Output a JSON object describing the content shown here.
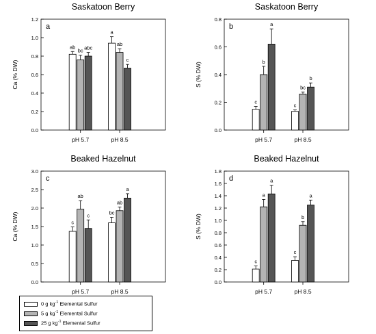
{
  "colors": {
    "treatment_0": "#ffffff",
    "treatment_5": "#b4b4b4",
    "treatment_25": "#555555"
  },
  "legend": {
    "entries": [
      {
        "pre": "0 g kg",
        "sup": "-1",
        "post": " Elemental Sulfur"
      },
      {
        "pre": "5 g kg",
        "sup": "-1",
        "post": " Elemental Sulfur"
      },
      {
        "pre": "25 g kg",
        "sup": "-1",
        "post": " Elemental Sulfur"
      }
    ]
  },
  "chart_data": [
    {
      "type": "bar",
      "panel_letter": "a",
      "title": "Saskatoon Berry",
      "ylabel": "Ca (% DW)",
      "xlabel": "",
      "categories": [
        "pH 5.7",
        "pH 8.5"
      ],
      "ylim": [
        0,
        1.2
      ],
      "yticks": [
        "0.0",
        "0.2",
        "0.4",
        "0.6",
        "0.8",
        "1.0",
        "1.2"
      ],
      "series": [
        {
          "values": [
            0.82,
            0.94
          ],
          "errors": [
            0.03,
            0.07
          ],
          "letters": [
            "ab",
            "a"
          ]
        },
        {
          "values": [
            0.76,
            0.84
          ],
          "errors": [
            0.05,
            0.04
          ],
          "letters": [
            "bc",
            "ab"
          ]
        },
        {
          "values": [
            0.8,
            0.67
          ],
          "errors": [
            0.04,
            0.04
          ],
          "letters": [
            "abc",
            "c"
          ]
        }
      ]
    },
    {
      "type": "bar",
      "panel_letter": "b",
      "title": "Saskatoon Berry",
      "ylabel": "S (% DW)",
      "xlabel": "",
      "categories": [
        "pH 5.7",
        "pH 8.5"
      ],
      "ylim": [
        0,
        0.8
      ],
      "yticks": [
        "0.0",
        "0.2",
        "0.4",
        "0.6",
        "0.8"
      ],
      "series": [
        {
          "values": [
            0.15,
            0.135
          ],
          "errors": [
            0.02,
            0.01
          ],
          "letters": [
            "c",
            "c"
          ]
        },
        {
          "values": [
            0.4,
            0.26
          ],
          "errors": [
            0.06,
            0.015
          ],
          "letters": [
            "b",
            "bc"
          ]
        },
        {
          "values": [
            0.62,
            0.31
          ],
          "errors": [
            0.11,
            0.03
          ],
          "letters": [
            "a",
            "b"
          ]
        }
      ]
    },
    {
      "type": "bar",
      "panel_letter": "c",
      "title": "Beaked Hazelnut",
      "ylabel": "Ca (% DW)",
      "xlabel": "",
      "categories": [
        "pH 5.7",
        "pH 8.5"
      ],
      "ylim": [
        0,
        3.0
      ],
      "yticks": [
        "0.0",
        "0.5",
        "1.0",
        "1.5",
        "2.0",
        "2.5",
        "3.0"
      ],
      "series": [
        {
          "values": [
            1.37,
            1.6
          ],
          "errors": [
            0.12,
            0.15
          ],
          "letters": [
            "c",
            "bc"
          ]
        },
        {
          "values": [
            1.97,
            1.93
          ],
          "errors": [
            0.23,
            0.1
          ],
          "letters": [
            "ab",
            "ab"
          ]
        },
        {
          "values": [
            1.45,
            2.27
          ],
          "errors": [
            0.23,
            0.12
          ],
          "letters": [
            "c",
            "a"
          ]
        }
      ]
    },
    {
      "type": "bar",
      "panel_letter": "d",
      "title": "Beaked Hazelnut",
      "ylabel": "S (% DW)",
      "xlabel": "",
      "categories": [
        "pH 5.7",
        "pH 8.5"
      ],
      "ylim": [
        0,
        1.8
      ],
      "yticks": [
        "0.0",
        "0.2",
        "0.4",
        "0.6",
        "0.8",
        "1.0",
        "1.2",
        "1.4",
        "1.6",
        "1.8"
      ],
      "series": [
        {
          "values": [
            0.21,
            0.35
          ],
          "errors": [
            0.05,
            0.06
          ],
          "letters": [
            "c",
            "c"
          ]
        },
        {
          "values": [
            1.22,
            0.92
          ],
          "errors": [
            0.12,
            0.06
          ],
          "letters": [
            "a",
            "b"
          ]
        },
        {
          "values": [
            1.43,
            1.25
          ],
          "errors": [
            0.14,
            0.08
          ],
          "letters": [
            "a",
            "a"
          ]
        }
      ]
    }
  ]
}
